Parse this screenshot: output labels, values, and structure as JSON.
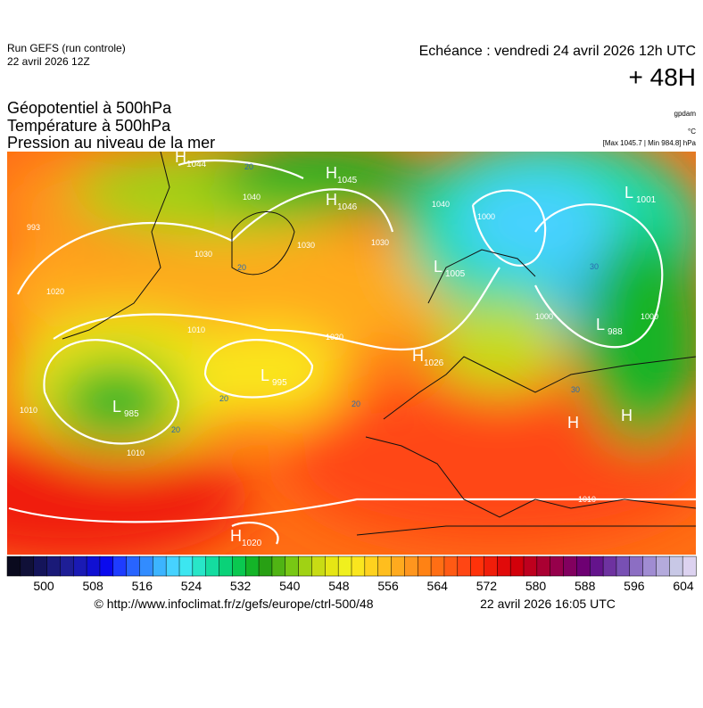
{
  "header": {
    "run": "Run GEFS (run controle)",
    "run_date": "22 avril 2026 12Z",
    "valid": "Echéance : vendredi 24 avril 2026 12h UTC",
    "lead": "+ 48H",
    "titles": [
      "Géopotentiel à 500hPa",
      "Température à 500hPa",
      "Pression au niveau de la mer"
    ],
    "units": [
      "gpdam",
      "°C",
      "[Max 1045.7 | Min 984.8] hPa"
    ]
  },
  "map": {
    "centers": [
      {
        "symbol": "H",
        "value": "1044"
      },
      {
        "symbol": "H",
        "value": "1045"
      },
      {
        "symbol": "H",
        "value": "1046"
      },
      {
        "symbol": "L",
        "value": "1005"
      },
      {
        "symbol": "L",
        "value": "1001"
      },
      {
        "symbol": "L",
        "value": "988"
      },
      {
        "symbol": "H",
        "value": "1026"
      },
      {
        "symbol": "L",
        "value": "995"
      },
      {
        "symbol": "L",
        "value": "985"
      },
      {
        "symbol": "H",
        "value": "1020"
      },
      {
        "symbol": "H"
      },
      {
        "symbol": "H"
      }
    ],
    "isobar_labels": [
      "993",
      "1040",
      "1030",
      "1030",
      "1030",
      "1020",
      "1020",
      "1010",
      "1010",
      "1010",
      "1010",
      "1000",
      "1000",
      "1000",
      "1040"
    ],
    "temperature_labels": [
      "20",
      "20",
      "20",
      "20",
      "30",
      "20",
      "30"
    ]
  },
  "colorbar": {
    "ticks": [
      500,
      508,
      516,
      524,
      532,
      540,
      548,
      556,
      564,
      572,
      580,
      588,
      596,
      604
    ],
    "colors": [
      "#0a0a1e",
      "#101038",
      "#14145a",
      "#1a1a78",
      "#1e1e96",
      "#1a1ab4",
      "#1010d2",
      "#0a0aee",
      "#1e3cff",
      "#2864ff",
      "#328cff",
      "#3cb4ff",
      "#46d2ff",
      "#3ce6f0",
      "#28e6c8",
      "#14dca0",
      "#0ad278",
      "#0ac850",
      "#14b428",
      "#28a014",
      "#50b414",
      "#78c814",
      "#a0d214",
      "#c8dc14",
      "#e6e614",
      "#f0f01e",
      "#fae61e",
      "#ffd21e",
      "#ffbe1e",
      "#ffaa1e",
      "#ff961e",
      "#ff8214",
      "#ff6e14",
      "#ff5a14",
      "#ff4614",
      "#ff320a",
      "#f01e0a",
      "#e10a0a",
      "#d2000a",
      "#be001e",
      "#aa0032",
      "#96004b",
      "#82005f",
      "#6e0073",
      "#64148c",
      "#6e32a0",
      "#7850b4",
      "#8c6ec3",
      "#a08cd2",
      "#b4aadc",
      "#c8c8e6",
      "#dcd2f0"
    ]
  },
  "footer": {
    "source": "© http://www.infoclimat.fr/z/gefs/europe/ctrl-500/48",
    "generated": "22 avril 2026 16:05 UTC"
  }
}
